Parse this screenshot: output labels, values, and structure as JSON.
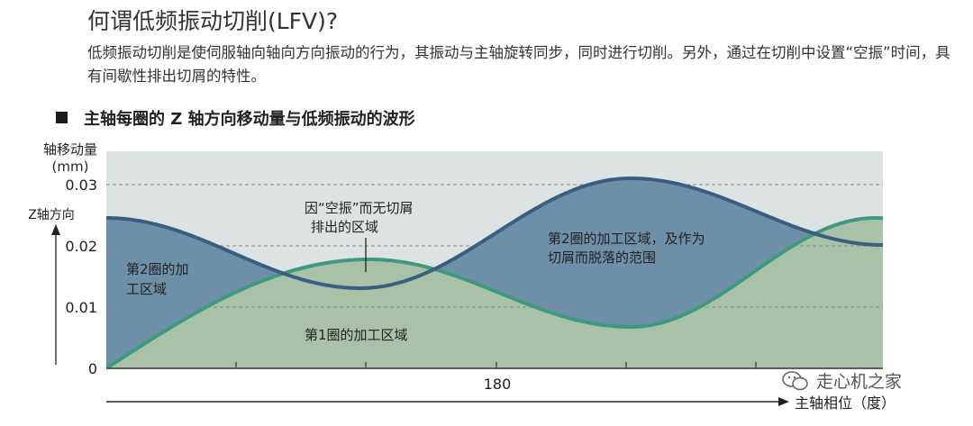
{
  "header": {
    "title": "何谓低频振动切削(LFV)?",
    "description": "低频振动切削是使伺服轴向轴向方向振动的行为，其振动与主轴旋转同步，同时进行切削。另外，通过在切削中设置“空振”时间，具有间歇性排出切屑的特性。",
    "subtitle": "主轴每圈的 Z 轴方向移动量与低频振动的波形"
  },
  "diagram": {
    "y_axis_title_line1": "轴移动量",
    "y_axis_title_line2": "(mm)",
    "y_arrow_label": "Z轴方向",
    "y_ticks": [
      "0.03",
      "0.02",
      "0.01",
      "0"
    ],
    "x_tick": "180",
    "x_arrow_label": "主轴相位（度）",
    "label_air_cut_line1": "因“空振”而无切屑",
    "label_air_cut_line2": "排出的区域",
    "label_second_line1": "第2圈的加",
    "label_second_line2": "工区域",
    "label_second_right_line1": "第2圈的加工区域，及作为",
    "label_second_right_line2": "切屑而脱落的范围",
    "label_first": "第1圈的加工区域",
    "colors": {
      "first_turn_fill": "#a9c2a7",
      "second_turn_fill": "#6e8fa8",
      "air_cut_fill": "#ccd3d3",
      "first_turn_line": "#3e9a7e",
      "second_turn_line": "#3a5e7f",
      "plot_background": "#dde2e2"
    }
  },
  "watermark": {
    "text": "走心机之家",
    "icon": "wechat-icon"
  }
}
